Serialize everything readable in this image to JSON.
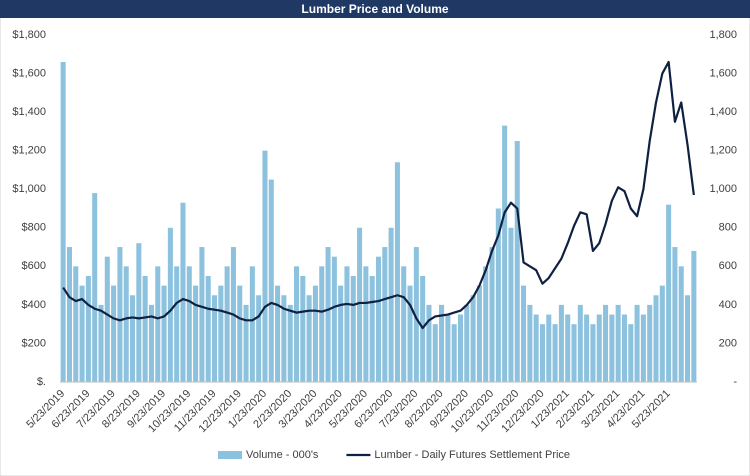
{
  "chart_data": {
    "type": "combo",
    "title": "Lumber Price and Volume",
    "categories": [
      "5/23/2019",
      null,
      null,
      null,
      "6/23/2019",
      null,
      null,
      null,
      "7/23/2019",
      null,
      null,
      null,
      "8/23/2019",
      null,
      null,
      null,
      "9/23/2019",
      null,
      null,
      null,
      "10/23/2019",
      null,
      null,
      null,
      "11/23/2019",
      null,
      null,
      null,
      "12/23/2019",
      null,
      null,
      null,
      "1/23/2020",
      null,
      null,
      null,
      "2/23/2020",
      null,
      null,
      null,
      "3/23/2020",
      null,
      null,
      null,
      "4/23/2020",
      null,
      null,
      null,
      "5/23/2020",
      null,
      null,
      null,
      "6/23/2020",
      null,
      null,
      null,
      "7/23/2020",
      null,
      null,
      null,
      "8/23/2020",
      null,
      null,
      null,
      "9/23/2020",
      null,
      null,
      null,
      "10/23/2020",
      null,
      null,
      null,
      "11/23/2020",
      null,
      null,
      null,
      "12/23/2020",
      null,
      null,
      null,
      "1/23/2021",
      null,
      null,
      null,
      "2/23/2021",
      null,
      null,
      null,
      "3/23/2021",
      null,
      null,
      null,
      "4/23/2021",
      null,
      null,
      null,
      "5/23/2021",
      null,
      null,
      null,
      null
    ],
    "series": [
      {
        "name": "Volume - 000's",
        "type": "bar",
        "axis": "y2",
        "color": "#8dc2df",
        "values": [
          1660,
          700,
          600,
          500,
          550,
          980,
          400,
          650,
          500,
          700,
          600,
          450,
          720,
          550,
          400,
          600,
          500,
          800,
          600,
          930,
          600,
          500,
          700,
          550,
          450,
          500,
          600,
          700,
          500,
          400,
          600,
          450,
          1200,
          1050,
          500,
          450,
          400,
          600,
          550,
          450,
          500,
          600,
          700,
          650,
          500,
          600,
          550,
          800,
          600,
          550,
          650,
          700,
          800,
          1140,
          600,
          500,
          700,
          550,
          400,
          300,
          400,
          350,
          300,
          350,
          400,
          450,
          500,
          600,
          700,
          900,
          1330,
          800,
          1250,
          500,
          400,
          350,
          300,
          350,
          300,
          400,
          350,
          300,
          400,
          350,
          300,
          350,
          400,
          350,
          400,
          350,
          300,
          400,
          350,
          400,
          450,
          500,
          920,
          700,
          600,
          450,
          680
        ]
      },
      {
        "name": "Lumber - Daily Futures Settlement Price",
        "type": "line",
        "color": "#0f2142",
        "values": [
          490,
          440,
          420,
          430,
          400,
          380,
          370,
          350,
          330,
          320,
          330,
          335,
          330,
          335,
          340,
          330,
          340,
          370,
          410,
          430,
          420,
          400,
          390,
          380,
          375,
          370,
          360,
          350,
          330,
          320,
          320,
          340,
          390,
          410,
          400,
          380,
          370,
          360,
          365,
          370,
          370,
          365,
          375,
          390,
          400,
          405,
          400,
          410,
          410,
          415,
          420,
          430,
          440,
          450,
          440,
          400,
          330,
          280,
          320,
          340,
          345,
          350,
          360,
          370,
          400,
          440,
          500,
          580,
          680,
          760,
          880,
          930,
          900,
          620,
          600,
          580,
          510,
          540,
          590,
          640,
          720,
          810,
          880,
          870,
          680,
          720,
          820,
          940,
          1010,
          990,
          900,
          860,
          1000,
          1250,
          1450,
          1600,
          1660,
          1350,
          1450,
          1230,
          970
        ]
      }
    ],
    "ylim": [
      0,
      1800
    ],
    "yticks": [
      {
        "value": 0,
        "label": "$."
      },
      {
        "value": 200,
        "label": "$200"
      },
      {
        "value": 400,
        "label": "$400"
      },
      {
        "value": 600,
        "label": "$600"
      },
      {
        "value": 800,
        "label": "$800"
      },
      {
        "value": 1000,
        "label": "$1,000"
      },
      {
        "value": 1200,
        "label": "$1,200"
      },
      {
        "value": 1400,
        "label": "$1,400"
      },
      {
        "value": 1600,
        "label": "$1,600"
      },
      {
        "value": 1800,
        "label": "$1,800"
      }
    ],
    "y2lim": [
      0,
      1800
    ],
    "y2ticks": [
      {
        "value": 0,
        "label": "-"
      },
      200,
      400,
      600,
      800,
      {
        "value": 1000,
        "label": "1,000"
      },
      {
        "value": 1200,
        "label": "1,200"
      },
      {
        "value": 1400,
        "label": "1,400"
      },
      {
        "value": 1600,
        "label": "1,600"
      },
      {
        "value": 1800,
        "label": "1,800"
      }
    ],
    "legend": "bottom"
  }
}
